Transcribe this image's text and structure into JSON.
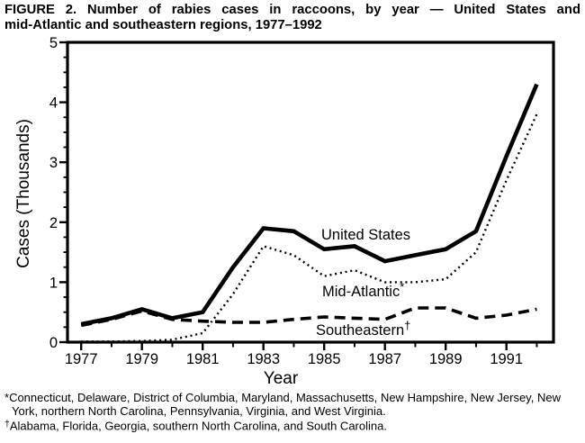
{
  "title": {
    "line1": "FIGURE 2. Number of rabies cases in raccoons, by year — United States and",
    "line2": "mid-Atlantic and southeastern regions, 1977–1992"
  },
  "chart_data": {
    "type": "line",
    "title": "Number of rabies cases in raccoons, by year",
    "xlabel": "Year",
    "ylabel": "Cases (Thousands)",
    "x": [
      1977,
      1978,
      1979,
      1980,
      1981,
      1982,
      1983,
      1984,
      1985,
      1986,
      1987,
      1988,
      1989,
      1990,
      1991,
      1992
    ],
    "xlim": [
      1976.55,
      1992.55
    ],
    "ylim": [
      0,
      5
    ],
    "y_major_ticks": [
      0,
      1,
      2,
      3,
      4,
      5
    ],
    "y_minor_tick_step": 0.25,
    "x_labeled_ticks": [
      1977,
      1979,
      1981,
      1983,
      1985,
      1987,
      1989,
      1991
    ],
    "x_minor_ticks": [
      1978,
      1980,
      1982,
      1984,
      1986,
      1988,
      1990,
      1992
    ],
    "grid": false,
    "legend_position": "inline-labels",
    "units": "thousands of cases",
    "series": [
      {
        "name": "United States",
        "line_style": "solid",
        "values": [
          0.3,
          0.4,
          0.55,
          0.4,
          0.5,
          1.25,
          1.9,
          1.85,
          1.55,
          1.6,
          1.35,
          1.45,
          1.55,
          1.85,
          3.1,
          4.3
        ]
      },
      {
        "name": "Mid-Atlantic*",
        "line_style": "dotted",
        "values": [
          0.01,
          0.01,
          0.02,
          0.04,
          0.15,
          0.8,
          1.6,
          1.45,
          1.1,
          1.2,
          1.0,
          1.0,
          1.05,
          1.5,
          2.7,
          3.8
        ]
      },
      {
        "name": "Southeastern†",
        "line_style": "dashed",
        "values": [
          0.28,
          0.38,
          0.52,
          0.38,
          0.35,
          0.33,
          0.33,
          0.38,
          0.42,
          0.4,
          0.38,
          0.57,
          0.57,
          0.4,
          0.45,
          0.55
        ]
      }
    ],
    "line_color": "#000000"
  },
  "footnotes": [
    {
      "marker": "*",
      "text": "Connecticut, Delaware, District of Columbia, Maryland, Massachusetts, New Hampshire, New Jersey, New York, northern North Carolina, Pennsylvania, Virginia, and West Virginia."
    },
    {
      "marker": "†",
      "text": "Alabama, Florida, Georgia, southern North Carolina, and South Carolina."
    }
  ]
}
